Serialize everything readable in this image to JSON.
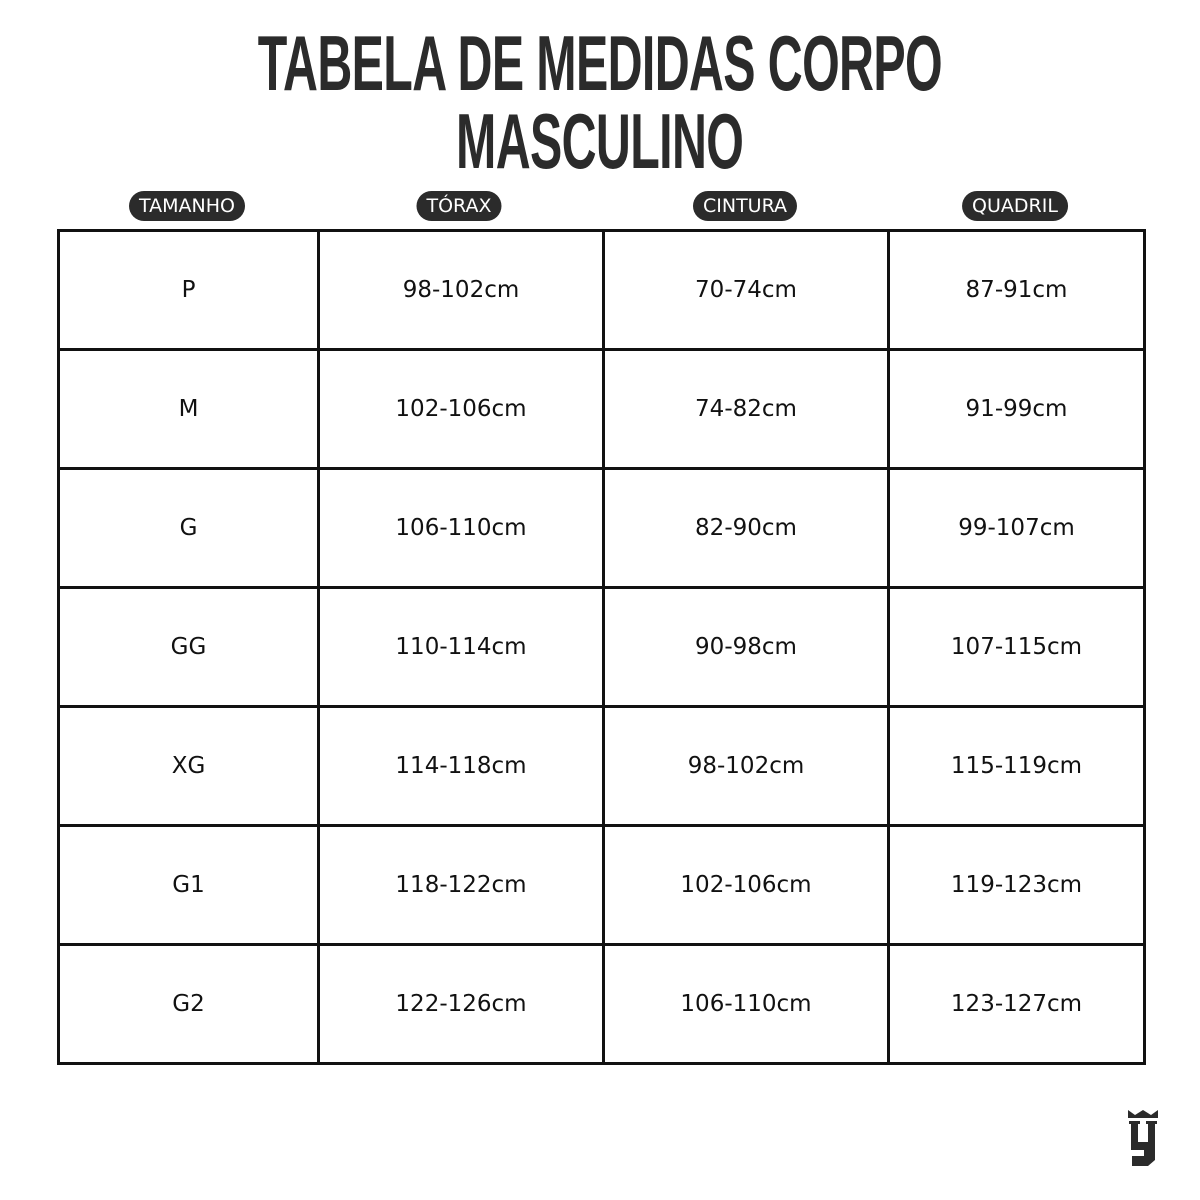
{
  "title": {
    "line1": "TABELA DE MEDIDAS CORPO",
    "line2": "MASCULINO"
  },
  "columns": [
    "TAMANHO",
    "TÓRAX",
    "CINTURA",
    "QUADRIL"
  ],
  "rows": [
    [
      "P",
      "98-102cm",
      "70-74cm",
      "87-91cm"
    ],
    [
      "M",
      "102-106cm",
      "74-82cm",
      "91-99cm"
    ],
    [
      "G",
      "106-110cm",
      "82-90cm",
      "99-107cm"
    ],
    [
      "GG",
      "110-114cm",
      "90-98cm",
      "107-115cm"
    ],
    [
      "XG",
      "114-118cm",
      "98-102cm",
      "115-119cm"
    ],
    [
      "G1",
      "118-122cm",
      "102-106cm",
      "119-123cm"
    ],
    [
      "G2",
      "122-126cm",
      "106-110cm",
      "123-127cm"
    ]
  ],
  "colors": {
    "pill": "#2b2b2b",
    "border": "#111111"
  },
  "logo_icon": "crowned-monogram-logo"
}
